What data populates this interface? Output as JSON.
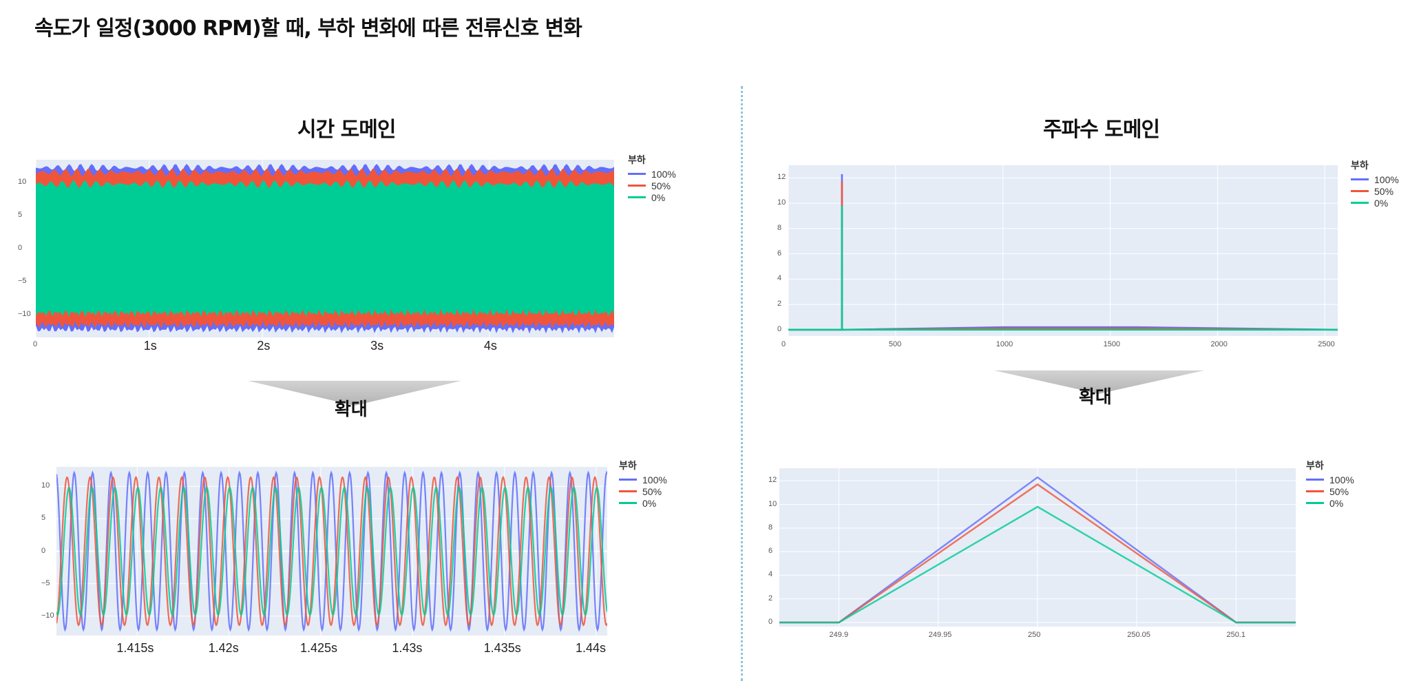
{
  "page": {
    "title": "속도가 일정(3000 RPM)할 때, 부하 변화에 따른 전류신호 변화",
    "left_heading": "시간 도메인",
    "right_heading": "주파수 도메인",
    "zoom_label": "확대"
  },
  "colors": {
    "100%": "#636efa",
    "50%": "#ef553b",
    "0%": "#00cc96"
  },
  "chart_data": [
    {
      "id": "time-full",
      "type": "line",
      "legend_title": "부하",
      "series": [
        {
          "name": "100%",
          "amplitude": 12.3
        },
        {
          "name": "50%",
          "amplitude": 11.6
        },
        {
          "name": "0%",
          "amplitude": 9.8
        }
      ],
      "xlim": [
        0,
        5.1
      ],
      "ylim": [
        -13.5,
        13.5
      ],
      "yticks": [
        10,
        5,
        0,
        -5,
        -10
      ],
      "ytick_labels": [
        "10",
        "5",
        "0",
        "−5",
        "−10"
      ],
      "xticks": [
        0,
        1,
        2,
        3,
        4
      ],
      "xtick_labels": [
        "0",
        "1s",
        "2s",
        "3s",
        "4s"
      ]
    },
    {
      "id": "freq-full",
      "type": "line",
      "legend_title": "부하",
      "x": [
        0,
        248,
        249.9,
        250,
        250.1,
        252,
        1000,
        1120,
        1620,
        2560
      ],
      "series": [
        {
          "name": "100%",
          "values": [
            0,
            0,
            0,
            12.3,
            0,
            0,
            0.2,
            0.2,
            0.2,
            0
          ]
        },
        {
          "name": "50%",
          "values": [
            0,
            0,
            0,
            11.7,
            0,
            0,
            0.1,
            0.1,
            0.1,
            0
          ]
        },
        {
          "name": "0%",
          "values": [
            0,
            0,
            0,
            9.8,
            0,
            0,
            0,
            0,
            0,
            0
          ]
        }
      ],
      "xlim": [
        0,
        2560
      ],
      "ylim": [
        -0.5,
        13
      ],
      "xticks": [
        0,
        500,
        1000,
        1500,
        2000,
        2500
      ],
      "yticks": [
        0,
        2,
        4,
        6,
        8,
        10,
        12
      ]
    },
    {
      "id": "time-zoom",
      "type": "line",
      "legend_title": "부하",
      "series": [
        {
          "name": "100%",
          "amplitude": 12.1,
          "freq_hz": 1000,
          "phase_deg": 245
        },
        {
          "name": "50%",
          "amplitude": 11.4,
          "freq_hz": 800,
          "phase_deg": 110
        },
        {
          "name": "0%",
          "amplitude": 9.8,
          "freq_hz": 800,
          "phase_deg": 80
        }
      ],
      "xlim": [
        1.4106,
        1.4406
      ],
      "ylim": [
        -13,
        13
      ],
      "yticks": [
        10,
        5,
        0,
        -5,
        -10
      ],
      "ytick_labels": [
        "10",
        "5",
        "0",
        "−5",
        "−10"
      ],
      "xticks": [
        1.415,
        1.42,
        1.425,
        1.43,
        1.435,
        1.44
      ],
      "xtick_labels": [
        "1.415s",
        "1.42s",
        "1.425s",
        "1.43s",
        "1.435s",
        "1.44s"
      ]
    },
    {
      "id": "freq-zoom",
      "type": "line",
      "legend_title": "부하",
      "x": [
        249.87,
        249.9,
        250,
        250.1,
        250.13
      ],
      "series": [
        {
          "name": "100%",
          "values": [
            0,
            0,
            12.3,
            0,
            0
          ]
        },
        {
          "name": "50%",
          "values": [
            0,
            0,
            11.7,
            0,
            0
          ]
        },
        {
          "name": "0%",
          "values": [
            0,
            0,
            9.8,
            0,
            0
          ]
        }
      ],
      "xlim": [
        249.87,
        250.13
      ],
      "ylim": [
        0,
        12.6
      ],
      "xticks": [
        249.9,
        249.95,
        250,
        250.05,
        250.1
      ],
      "xtick_labels": [
        "249.9",
        "249.95",
        "250",
        "250.05",
        "250.1"
      ],
      "yticks": [
        0,
        2,
        4,
        6,
        8,
        10,
        12
      ]
    }
  ]
}
